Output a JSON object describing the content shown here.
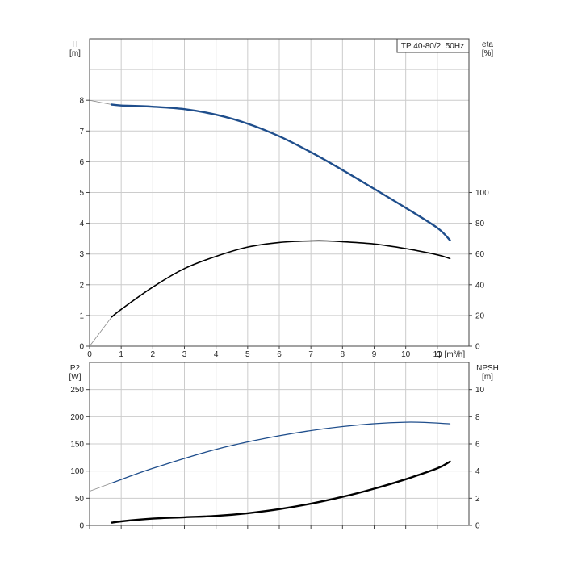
{
  "colors": {
    "grid": "#cccccc",
    "frame": "#444444",
    "head_curve": "#1f4e8c",
    "efficiency_curve": "#000000",
    "power_curve": "#1f4e8c",
    "npsh_curve": "#000000",
    "extension_curve": "#8a8a8a"
  },
  "chart_data": [
    {
      "type": "line",
      "title": "TP 40-80/2, 50Hz",
      "xlabel": "Q [m³/h]",
      "ylabel_left": [
        "H",
        "[m]"
      ],
      "ylabel_right": [
        "eta",
        "[%]"
      ],
      "xlim": [
        0,
        12
      ],
      "ylim_left": [
        0,
        10
      ],
      "ylim_right": [
        0,
        200
      ],
      "x_ticks": [
        "0",
        "1",
        "2",
        "3",
        "4",
        "5",
        "6",
        "7",
        "8",
        "9",
        "10",
        "11"
      ],
      "y_ticks_left": [
        "0",
        "1",
        "2",
        "3",
        "4",
        "5",
        "6",
        "7",
        "8"
      ],
      "y_ticks_right": [
        "0",
        "20",
        "40",
        "60",
        "80",
        "100"
      ],
      "grid": true,
      "series": [
        {
          "axis": "left",
          "x": [
            0.7,
            1.0,
            2.0,
            3.0,
            4.0,
            5.0,
            6.0,
            7.0,
            8.0,
            9.0,
            10.0,
            11.0,
            11.4
          ],
          "y": [
            7.86,
            7.83,
            7.79,
            7.71,
            7.53,
            7.24,
            6.83,
            6.31,
            5.73,
            5.12,
            4.5,
            3.85,
            3.45
          ],
          "extension": {
            "x": [
              0,
              0.7
            ],
            "y": [
              8.0,
              7.86
            ]
          }
        },
        {
          "axis": "right",
          "x": [
            0.7,
            1.0,
            2.0,
            3.0,
            4.0,
            5.0,
            6.0,
            7.0,
            7.5,
            8.0,
            9.0,
            10.0,
            11.0,
            11.4
          ],
          "y": [
            19,
            24,
            38.5,
            50.5,
            58.5,
            64.5,
            67.5,
            68.5,
            68.5,
            68.0,
            66.5,
            63.5,
            59.5,
            57
          ],
          "extension": {
            "x": [
              0,
              0.7
            ],
            "y": [
              0,
              19
            ]
          }
        }
      ]
    },
    {
      "type": "line",
      "xlim": [
        0,
        12
      ],
      "ylabel_left": [
        "P2",
        "[W]"
      ],
      "ylabel_right": [
        "NPSH",
        "[m]"
      ],
      "ylim_left": [
        0,
        300
      ],
      "ylim_right": [
        0,
        12
      ],
      "y_ticks_left": [
        "0",
        "50",
        "100",
        "150",
        "200",
        "250"
      ],
      "y_ticks_right": [
        "0",
        "2",
        "4",
        "6",
        "8",
        "10"
      ],
      "grid": true,
      "series": [
        {
          "axis": "left",
          "x": [
            0.7,
            2.0,
            4.0,
            6.0,
            8.0,
            10.0,
            11.4
          ],
          "y": [
            78,
            105,
            140,
            165,
            182,
            190,
            187
          ],
          "extension": {
            "x": [
              0,
              0.7
            ],
            "y": [
              63,
              78
            ]
          }
        },
        {
          "axis": "right",
          "x": [
            0.7,
            1.0,
            2.0,
            3.0,
            4.0,
            5.0,
            6.0,
            7.0,
            8.0,
            9.0,
            10.0,
            11.0,
            11.4
          ],
          "y": [
            0.2,
            0.3,
            0.5,
            0.6,
            0.7,
            0.9,
            1.2,
            1.6,
            2.1,
            2.7,
            3.4,
            4.2,
            4.7
          ]
        }
      ]
    }
  ]
}
